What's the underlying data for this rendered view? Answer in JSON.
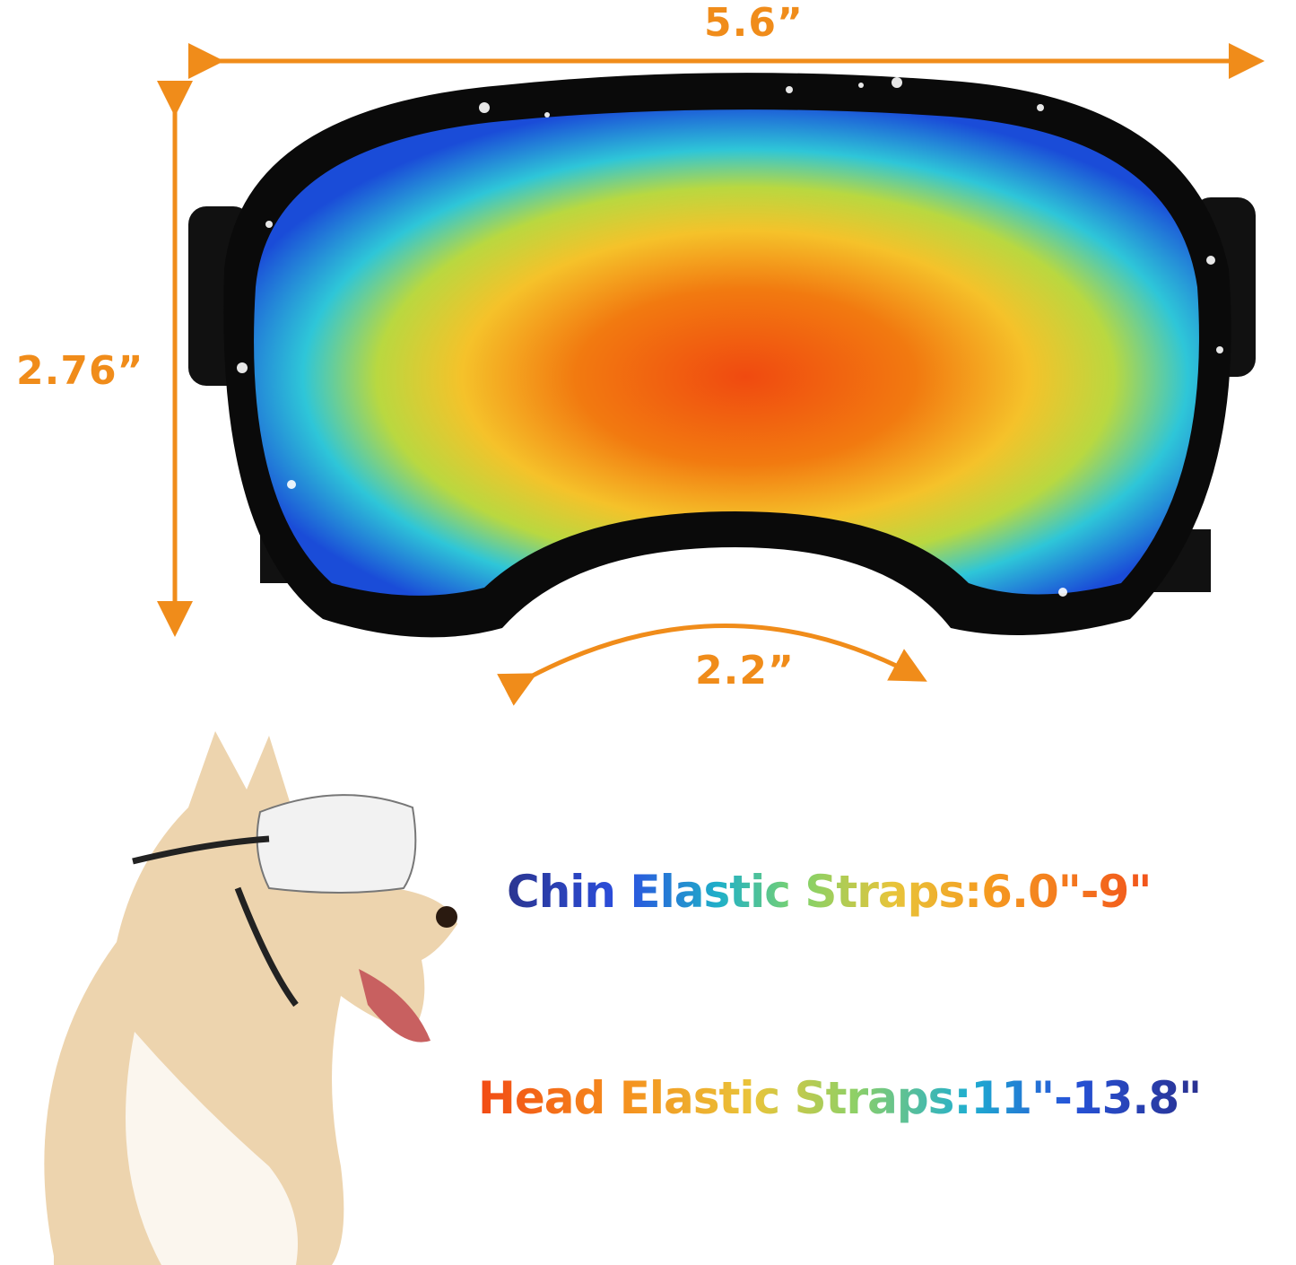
{
  "dimensions": {
    "width": "5.6”",
    "height": "2.76”",
    "nose_bridge": "2.2”"
  },
  "straps": {
    "chin": "Chin Elastic Straps:6.0\"-9\"",
    "head": "Head Elastic Straps:11\"-13.8\""
  },
  "colors": {
    "dimension_accent": "#f08c1a",
    "frame": "#0a0a0a"
  }
}
